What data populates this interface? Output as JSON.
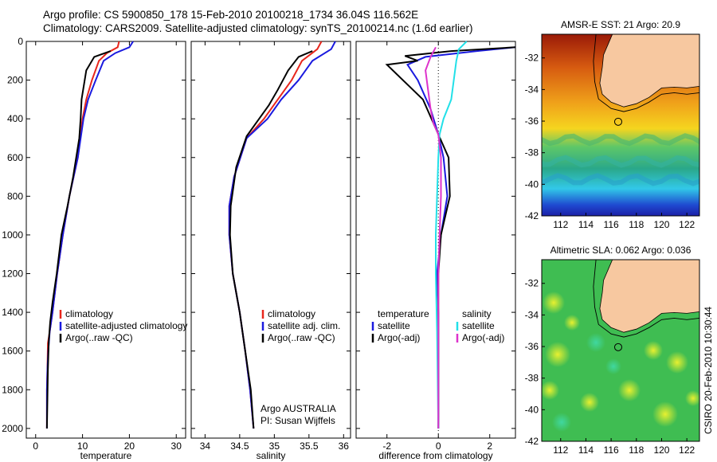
{
  "header": {
    "line1": "Argo profile: CS 5900850_178 15-Feb-2010 20100218_1734 36.04S 116.562E",
    "line2": "Climatology: CARS2009. Satellite-adjusted climatology: synTS_20100214.nc (1.6d earlier)"
  },
  "side_label": "CSIRO 20-Feb-2010 10:30:44",
  "chart_data": [
    {
      "id": "temperature",
      "type": "line",
      "xlabel": "temperature",
      "ylabel": "",
      "xlim": [
        -2,
        32
      ],
      "ylim": [
        0,
        2050
      ],
      "y_inverted": true,
      "xticks": [
        0,
        10,
        20,
        30
      ],
      "yticks": [
        0,
        200,
        400,
        600,
        800,
        1000,
        1200,
        1400,
        1600,
        1800,
        2000
      ],
      "legend": [
        "climatology",
        "satellite-adjusted climatology",
        "Argo(..raw -QC)"
      ],
      "legend_position": "lower-right",
      "series": [
        {
          "name": "climatology",
          "color": "#e8261c",
          "x": [
            17.8,
            17.5,
            15.2,
            13.5,
            12.0,
            10.8,
            10.0,
            9.0,
            7.2,
            5.8,
            4.6,
            3.6,
            3.0,
            2.6,
            2.5,
            2.4,
            2.4
          ],
          "y": [
            0,
            30,
            60,
            100,
            200,
            300,
            400,
            600,
            800,
            1000,
            1200,
            1400,
            1500,
            1560,
            1700,
            1800,
            2000
          ]
        },
        {
          "name": "satellite-adjusted climatology",
          "color": "#1a1adf",
          "x": [
            20.8,
            20.0,
            17.0,
            14.5,
            12.8,
            11.2,
            10.2,
            9.0,
            7.2,
            5.8,
            4.6,
            3.6,
            3.0,
            2.7,
            2.5,
            2.4,
            2.4
          ],
          "y": [
            0,
            30,
            60,
            100,
            200,
            300,
            400,
            600,
            800,
            1000,
            1200,
            1400,
            1500,
            1600,
            1700,
            1800,
            2000
          ]
        },
        {
          "name": "Argo(..raw -QC)",
          "color": "#000000",
          "x": [
            16.0,
            12.5,
            10.8,
            9.8,
            9.6,
            9.3,
            8.0,
            6.8,
            5.5,
            4.5,
            3.6,
            3.1,
            2.8,
            2.6,
            2.5,
            2.4
          ],
          "y": [
            50,
            80,
            150,
            300,
            400,
            500,
            700,
            850,
            1000,
            1200,
            1350,
            1450,
            1550,
            1700,
            1850,
            2000
          ]
        }
      ]
    },
    {
      "id": "salinity",
      "type": "line",
      "xlabel": "salinity",
      "ylabel": "",
      "xlim": [
        33.8,
        36.1
      ],
      "ylim": [
        0,
        2050
      ],
      "y_inverted": true,
      "xticks": [
        34,
        34.5,
        35,
        35.5,
        36
      ],
      "legend": [
        "climatology",
        "satellite adj. clim.",
        "Argo(..raw -QC)"
      ],
      "legend_position": "lower-right",
      "annotations": [
        "Argo AUSTRALIA",
        "PI: Susan Wijffels"
      ],
      "series": [
        {
          "name": "climatology",
          "color": "#e8261c",
          "x": [
            35.68,
            35.62,
            35.4,
            35.25,
            35.05,
            34.85,
            34.6,
            34.42,
            34.35,
            34.35,
            34.4,
            34.5,
            34.58,
            34.65,
            34.7
          ],
          "y": [
            0,
            40,
            100,
            200,
            300,
            400,
            500,
            700,
            850,
            1000,
            1200,
            1400,
            1600,
            1800,
            2000
          ]
        },
        {
          "name": "satellite adj. clim.",
          "color": "#1a1adf",
          "x": [
            35.88,
            35.82,
            35.55,
            35.35,
            35.1,
            34.9,
            34.6,
            34.42,
            34.35,
            34.35,
            34.4,
            34.5,
            34.58,
            34.65,
            34.7
          ],
          "y": [
            0,
            40,
            100,
            200,
            300,
            400,
            500,
            700,
            850,
            1000,
            1200,
            1400,
            1600,
            1800,
            2000
          ]
        },
        {
          "name": "Argo(..raw -QC)",
          "color": "#000000",
          "x": [
            35.55,
            35.35,
            35.2,
            35.05,
            34.92,
            34.78,
            34.6,
            34.45,
            34.37,
            34.36,
            34.4,
            34.5,
            34.58,
            34.66,
            34.7
          ],
          "y": [
            50,
            80,
            150,
            250,
            330,
            400,
            490,
            650,
            850,
            1000,
            1200,
            1400,
            1600,
            1800,
            2000
          ]
        }
      ]
    },
    {
      "id": "difference",
      "type": "line",
      "xlabel": "difference from climatology",
      "ylabel": "",
      "xlim": [
        -3.2,
        3
      ],
      "ylim": [
        0,
        2050
      ],
      "y_inverted": true,
      "xticks": [
        -2,
        0,
        2
      ],
      "legend": [
        "temperature",
        "satellite",
        "Argo(-adj)",
        "salinity",
        "satellite",
        "Argo(-adj)"
      ],
      "legend_position": "lower-center",
      "series": [
        {
          "name": "temperature satellite",
          "color": "#1a1adf",
          "x": [
            3.0,
            1.5,
            -0.5,
            -1.2,
            -0.8,
            -0.3,
            0.0,
            0.2,
            0.35,
            0.1,
            -0.05,
            0.0,
            0.0,
            0.0
          ],
          "y": [
            30,
            50,
            80,
            120,
            200,
            350,
            480,
            600,
            800,
            1000,
            1200,
            1400,
            1700,
            2000
          ]
        },
        {
          "name": "temperature Argo(-adj)",
          "color": "#000000",
          "x": [
            3.0,
            0.5,
            -1.3,
            -0.8,
            -2.0,
            -0.6,
            0.0,
            0.4,
            0.45,
            0.1,
            0.0,
            0.0,
            0.0
          ],
          "y": [
            30,
            50,
            75,
            100,
            120,
            300,
            480,
            600,
            800,
            1000,
            1200,
            1600,
            2000
          ]
        },
        {
          "name": "salinity satellite",
          "color": "#22e0e8",
          "x": [
            1.1,
            0.8,
            0.7,
            0.6,
            0.5,
            0.2,
            0.05,
            0.0,
            -0.05,
            -0.1,
            -0.1,
            -0.05,
            0.0
          ],
          "y": [
            0,
            40,
            100,
            200,
            300,
            400,
            480,
            600,
            800,
            1000,
            1200,
            1500,
            2000
          ]
        },
        {
          "name": "salinity Argo(-adj)",
          "color": "#dd33cc",
          "x": [
            -0.1,
            -0.3,
            -0.5,
            -0.4,
            -0.3,
            -0.2,
            0.0,
            0.1,
            0.1,
            0.05,
            0.0,
            0.0
          ],
          "y": [
            30,
            80,
            150,
            250,
            350,
            420,
            480,
            600,
            800,
            1000,
            1200,
            2000
          ]
        }
      ]
    },
    {
      "id": "sst_map",
      "type": "heatmap",
      "title": "AMSR-E SST: 21 Argo: 20.9",
      "xlim": [
        110.5,
        123
      ],
      "ylim": [
        -42,
        -30.5
      ],
      "xticks": [
        112,
        114,
        116,
        118,
        120,
        122
      ],
      "yticks": [
        -32,
        -34,
        -36,
        -38,
        -40,
        -42
      ],
      "marker": {
        "lon": 116.56,
        "lat": -36.04
      },
      "land_color": "#f7c8a0"
    },
    {
      "id": "sla_map",
      "type": "heatmap",
      "title": "Altimetric SLA: 0.062 Argo: 0.036",
      "xlim": [
        110.5,
        123
      ],
      "ylim": [
        -42,
        -30.5
      ],
      "xticks": [
        112,
        114,
        116,
        118,
        120,
        122
      ],
      "yticks": [
        -32,
        -34,
        -36,
        -38,
        -40,
        -42
      ],
      "marker": {
        "lon": 116.56,
        "lat": -36.04
      },
      "land_color": "#f7c8a0"
    }
  ]
}
